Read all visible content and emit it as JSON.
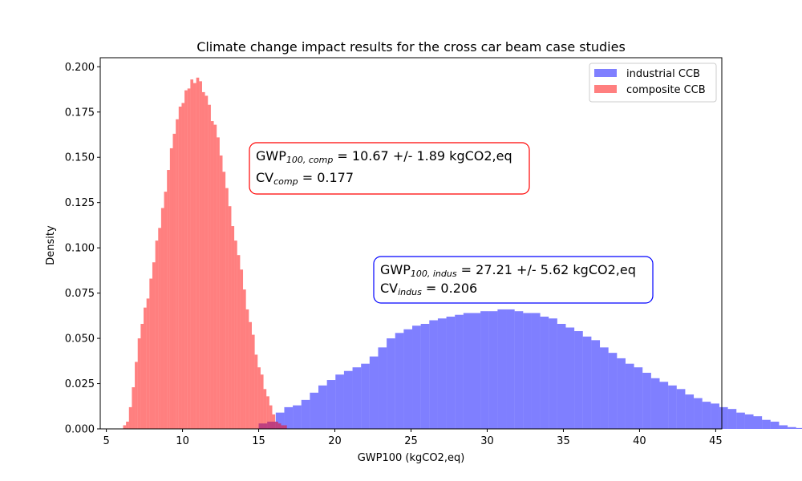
{
  "chart_data": {
    "type": "histogram",
    "title": "Climate change impact results for the cross car beam case studies",
    "xlabel": "GWP100 (kgCO2,eq)",
    "ylabel": "Density",
    "xlim": [
      4.6,
      45.4
    ],
    "ylim": [
      0,
      0.205
    ],
    "xticks": [
      5,
      10,
      15,
      20,
      25,
      30,
      35,
      40,
      45
    ],
    "yticks": [
      0.0,
      0.025,
      0.05,
      0.075,
      0.1,
      0.125,
      0.15,
      0.175,
      0.2
    ],
    "grid": false,
    "legend_position": "top-right",
    "series": [
      {
        "name": "industrial CCB",
        "color": "#0000ff",
        "alpha": 0.5,
        "bin_start": 15.0,
        "bin_width": 0.56,
        "densities": [
          0.003,
          0.004,
          0.009,
          0.012,
          0.013,
          0.016,
          0.02,
          0.024,
          0.027,
          0.03,
          0.032,
          0.034,
          0.036,
          0.04,
          0.045,
          0.05,
          0.053,
          0.055,
          0.057,
          0.058,
          0.06,
          0.061,
          0.062,
          0.063,
          0.064,
          0.064,
          0.065,
          0.065,
          0.066,
          0.066,
          0.065,
          0.064,
          0.064,
          0.062,
          0.061,
          0.058,
          0.056,
          0.054,
          0.051,
          0.049,
          0.045,
          0.042,
          0.039,
          0.036,
          0.034,
          0.031,
          0.028,
          0.026,
          0.024,
          0.022,
          0.019,
          0.017,
          0.015,
          0.014,
          0.012,
          0.011,
          0.009,
          0.008,
          0.007,
          0.005,
          0.004,
          0.002,
          0.001,
          0.0005
        ]
      },
      {
        "name": "composite CCB",
        "color": "#ff0000",
        "alpha": 0.5,
        "bin_start": 6.1,
        "bin_width": 0.192,
        "densities": [
          0.002,
          0.004,
          0.012,
          0.023,
          0.037,
          0.05,
          0.058,
          0.067,
          0.072,
          0.083,
          0.092,
          0.104,
          0.111,
          0.122,
          0.131,
          0.143,
          0.155,
          0.163,
          0.171,
          0.178,
          0.18,
          0.187,
          0.188,
          0.193,
          0.191,
          0.194,
          0.192,
          0.186,
          0.184,
          0.179,
          0.17,
          0.168,
          0.161,
          0.151,
          0.142,
          0.133,
          0.123,
          0.112,
          0.104,
          0.096,
          0.088,
          0.077,
          0.066,
          0.059,
          0.052,
          0.041,
          0.034,
          0.03,
          0.022,
          0.018,
          0.013,
          0.008,
          0.004,
          0.003,
          0.002,
          0.002
        ]
      }
    ],
    "annotations": [
      {
        "id": "comp",
        "lines": [
          {
            "parts": [
              {
                "text": "GWP"
              },
              {
                "text": "100, comp",
                "sub": true
              },
              {
                "text": " = 10.67 +/- 1.89 kgCO2,eq"
              }
            ]
          },
          {
            "parts": [
              {
                "text": "CV"
              },
              {
                "text": "comp",
                "sub": true
              },
              {
                "text": " = 0.177"
              }
            ]
          }
        ],
        "border_color": "#ff0000"
      },
      {
        "id": "indus",
        "lines": [
          {
            "parts": [
              {
                "text": "GWP"
              },
              {
                "text": "100, indus",
                "sub": true
              },
              {
                "text": " = 27.21 +/- 5.62 kgCO2,eq"
              }
            ]
          },
          {
            "parts": [
              {
                "text": "CV"
              },
              {
                "text": "indus",
                "sub": true
              },
              {
                "text": " = 0.206"
              }
            ]
          }
        ],
        "border_color": "#0000ff"
      }
    ]
  }
}
